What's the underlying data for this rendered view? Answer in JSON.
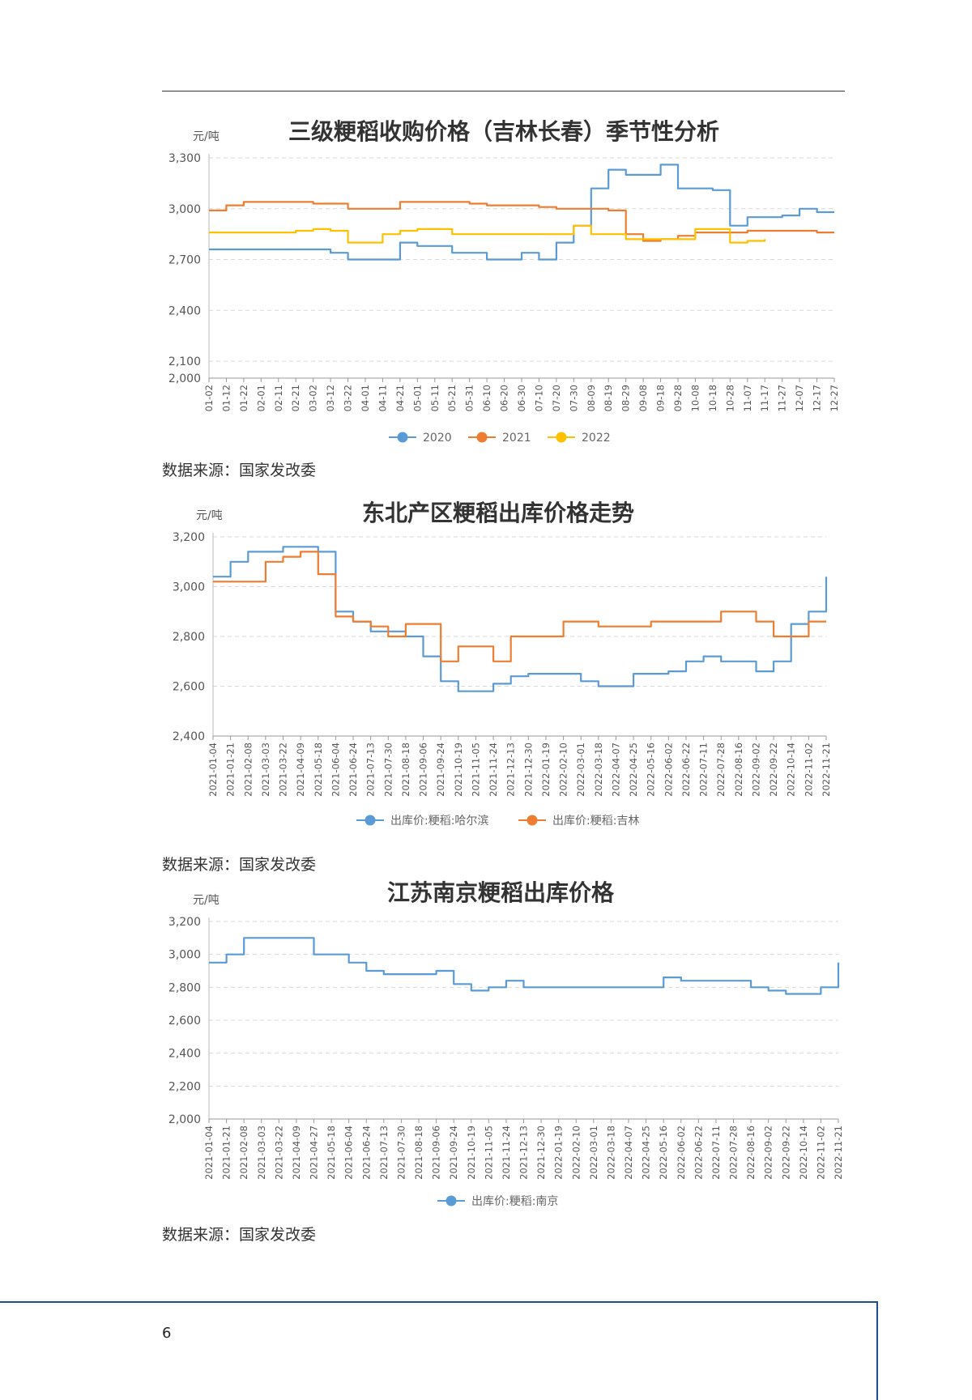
{
  "sources": {
    "chart1": "数据来源：国家发改委",
    "chart2": "数据来源：国家发改委",
    "chart3": "数据来源：国家发改委"
  },
  "page_number": "6",
  "colors": {
    "blue": "#5b9bd5",
    "orange": "#ed7d31",
    "yellow": "#ffc000",
    "grid": "#d9d9d9"
  },
  "chart_data": [
    {
      "type": "line",
      "title": "三级粳稻收购价格（吉林长春）季节性分析",
      "ylabel": "元/吨",
      "ylim": [
        2000,
        3300
      ],
      "y_ticks": [
        "3,300",
        "3,000",
        "2,700",
        "2,400",
        "2,100",
        "2,000"
      ],
      "y_tick_values": [
        3300,
        3000,
        2700,
        2400,
        2100,
        2000
      ],
      "grid": true,
      "legend": "bottom",
      "categories": [
        "01-02",
        "01-12",
        "01-22",
        "02-01",
        "02-11",
        "02-21",
        "03-02",
        "03-12",
        "03-22",
        "04-01",
        "04-11",
        "04-21",
        "05-01",
        "05-11",
        "05-21",
        "05-31",
        "06-10",
        "06-20",
        "06-30",
        "07-10",
        "07-20",
        "07-30",
        "08-09",
        "08-19",
        "08-29",
        "09-08",
        "09-18",
        "09-28",
        "10-08",
        "10-18",
        "10-28",
        "11-07",
        "11-17",
        "11-27",
        "12-07",
        "12-17",
        "12-27"
      ],
      "series": [
        {
          "name": "2020",
          "color": "#5b9bd5",
          "values": [
            2760,
            2760,
            2760,
            2760,
            2760,
            2760,
            2760,
            2740,
            2700,
            2700,
            2700,
            2800,
            2780,
            2780,
            2740,
            2740,
            2700,
            2700,
            2740,
            2700,
            2800,
            2900,
            3120,
            3230,
            3200,
            3200,
            3260,
            3120,
            3120,
            3110,
            2900,
            2950,
            2950,
            2960,
            3000,
            2980,
            2980
          ]
        },
        {
          "name": "2021",
          "color": "#ed7d31",
          "values": [
            2990,
            3020,
            3040,
            3040,
            3040,
            3040,
            3030,
            3030,
            3000,
            3000,
            3000,
            3040,
            3040,
            3040,
            3040,
            3030,
            3020,
            3020,
            3020,
            3010,
            3000,
            3000,
            3000,
            2990,
            2850,
            2810,
            2820,
            2840,
            2860,
            2860,
            2860,
            2870,
            2870,
            2870,
            2870,
            2860,
            2860
          ]
        },
        {
          "name": "2022",
          "color": "#ffc000",
          "values": [
            2860,
            2860,
            2860,
            2860,
            2860,
            2870,
            2880,
            2870,
            2800,
            2800,
            2850,
            2870,
            2880,
            2880,
            2850,
            2850,
            2850,
            2850,
            2850,
            2850,
            2850,
            2900,
            2850,
            2850,
            2820,
            2820,
            2820,
            2820,
            2880,
            2880,
            2800,
            2810,
            2820,
            null,
            null,
            null,
            null
          ]
        }
      ]
    },
    {
      "type": "line",
      "title": "东北产区粳稻出库价格走势",
      "ylabel": "元/吨",
      "ylim": [
        2400,
        3200
      ],
      "y_ticks": [
        "3,200",
        "3,000",
        "2,800",
        "2,600",
        "2,400"
      ],
      "y_tick_values": [
        3200,
        3000,
        2800,
        2600,
        2400
      ],
      "grid": true,
      "legend": "bottom",
      "categories": [
        "2021-01-04",
        "2021-01-21",
        "2021-02-08",
        "2021-03-03",
        "2021-03-22",
        "2021-04-09",
        "2021-05-18",
        "2021-06-04",
        "2021-06-24",
        "2021-07-13",
        "2021-07-30",
        "2021-08-18",
        "2021-09-06",
        "2021-09-24",
        "2021-10-19",
        "2021-11-05",
        "2021-11-24",
        "2021-12-13",
        "2021-12-30",
        "2022-01-19",
        "2022-02-10",
        "2022-03-01",
        "2022-03-18",
        "2022-04-07",
        "2022-04-25",
        "2022-05-16",
        "2022-06-02",
        "2022-06-22",
        "2022-07-11",
        "2022-07-28",
        "2022-08-16",
        "2022-09-02",
        "2022-09-22",
        "2022-10-14",
        "2022-11-02",
        "2022-11-21"
      ],
      "series": [
        {
          "name": "出库价:粳稻:哈尔滨",
          "color": "#5b9bd5",
          "values": [
            3040,
            3100,
            3140,
            3140,
            3160,
            3160,
            3140,
            2900,
            2860,
            2820,
            2820,
            2800,
            2720,
            2620,
            2580,
            2580,
            2610,
            2640,
            2650,
            2650,
            2650,
            2620,
            2600,
            2600,
            2650,
            2650,
            2660,
            2700,
            2720,
            2700,
            2700,
            2660,
            2700,
            2850,
            2900,
            3040
          ]
        },
        {
          "name": "出库价:粳稻:吉林",
          "color": "#ed7d31",
          "values": [
            3020,
            3020,
            3020,
            3100,
            3120,
            3140,
            3050,
            2880,
            2860,
            2840,
            2800,
            2850,
            2850,
            2700,
            2760,
            2760,
            2700,
            2800,
            2800,
            2800,
            2860,
            2860,
            2840,
            2840,
            2840,
            2860,
            2860,
            2860,
            2860,
            2900,
            2900,
            2860,
            2800,
            2800,
            2860,
            2860
          ]
        }
      ]
    },
    {
      "type": "line",
      "title": "江苏南京粳稻出库价格",
      "ylabel": "元/吨",
      "ylim": [
        2000,
        3200
      ],
      "y_ticks": [
        "3,200",
        "3,000",
        "2,800",
        "2,600",
        "2,400",
        "2,200",
        "2,000"
      ],
      "y_tick_values": [
        3200,
        3000,
        2800,
        2600,
        2400,
        2200,
        2000
      ],
      "grid": true,
      "legend": "bottom",
      "categories": [
        "2021-01-04",
        "2021-01-21",
        "2021-02-08",
        "2021-03-03",
        "2021-03-22",
        "2021-04-09",
        "2021-04-27",
        "2021-05-18",
        "2021-06-04",
        "2021-06-24",
        "2021-07-13",
        "2021-07-30",
        "2021-08-18",
        "2021-09-06",
        "2021-09-24",
        "2021-10-19",
        "2021-11-05",
        "2021-11-24",
        "2021-12-13",
        "2021-12-30",
        "2022-01-19",
        "2022-02-10",
        "2022-03-01",
        "2022-03-18",
        "2022-04-07",
        "2022-04-25",
        "2022-05-16",
        "2022-06-02",
        "2022-06-22",
        "2022-07-11",
        "2022-07-28",
        "2022-08-16",
        "2022-09-02",
        "2022-09-22",
        "2022-10-14",
        "2022-11-02",
        "2022-11-21"
      ],
      "series": [
        {
          "name": "出库价:粳稻:南京",
          "color": "#5b9bd5",
          "values": [
            2950,
            3000,
            3100,
            3100,
            3100,
            3100,
            3000,
            3000,
            2950,
            2900,
            2880,
            2880,
            2880,
            2900,
            2820,
            2780,
            2800,
            2840,
            2800,
            2800,
            2800,
            2800,
            2800,
            2800,
            2800,
            2800,
            2860,
            2840,
            2840,
            2840,
            2840,
            2800,
            2780,
            2760,
            2760,
            2800,
            2950
          ]
        }
      ]
    }
  ]
}
